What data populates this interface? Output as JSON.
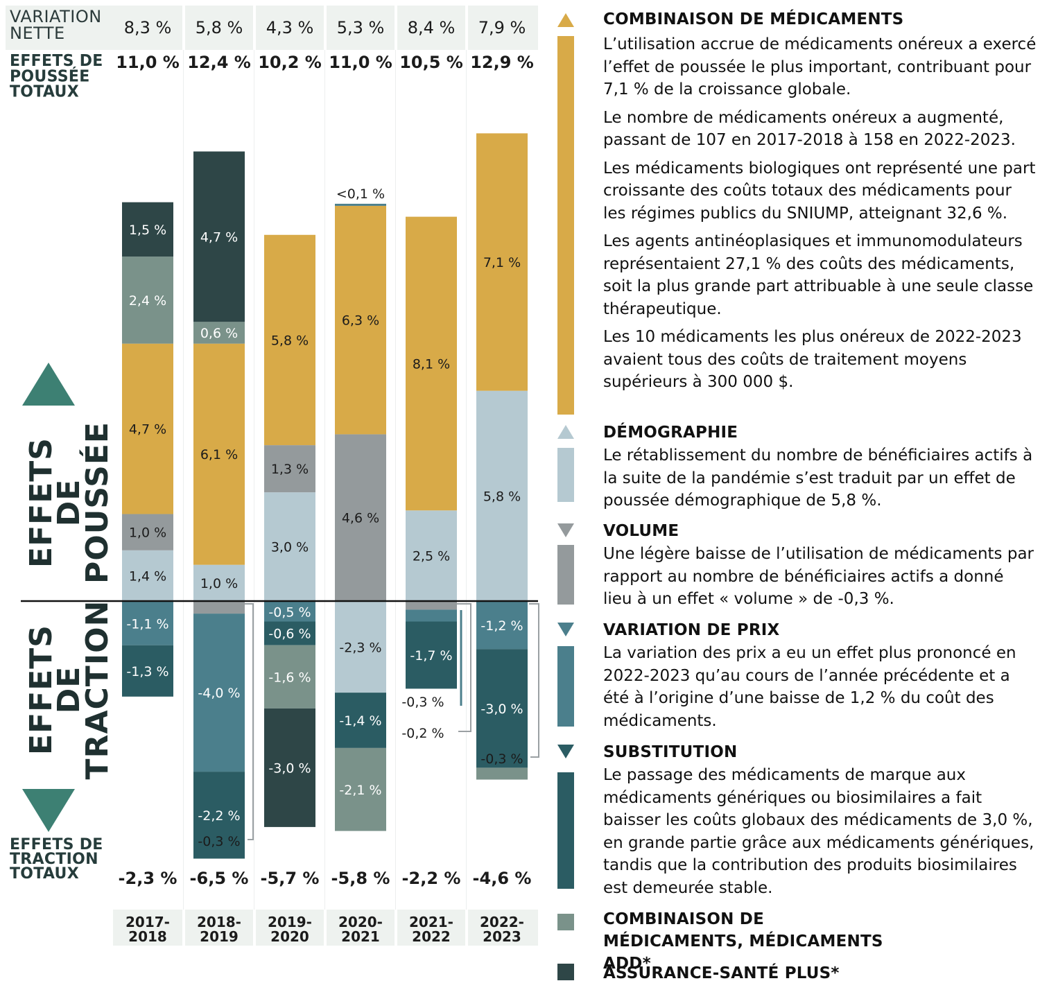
{
  "header": {
    "net_variation_label": "VARIATION NETTE",
    "push_total_label": "EFFETS DE POUSSÉE TOTAUX",
    "pull_total_label": "EFFETS DE TRACTION TOTAUX",
    "push_side_label": "EFFETS DE POUSSÉE",
    "pull_side_label": "EFFETS DE TRACTION"
  },
  "years": [
    "2017-2018",
    "2018-2019",
    "2019-2020",
    "2020-2021",
    "2021-2022",
    "2022-2023"
  ],
  "net_variation": [
    "8,3 %",
    "5,8 %",
    "4,3 %",
    "5,3 %",
    "8,4 %",
    "7,9 %"
  ],
  "push_totals": [
    "11,0 %",
    "12,4 %",
    "10,2 %",
    "11,0 %",
    "10,5 %",
    "12,9 %"
  ],
  "pull_totals": [
    "-2,3 %",
    "-6,5 %",
    "-5,7 %",
    "-5,8 %",
    "-2,2 %",
    "-4,6 %"
  ],
  "colors": {
    "drug_mix": "#d8aa48",
    "demography": "#b5c9d1",
    "volume": "#949a9c",
    "price": "#4b7f8c",
    "substitution": "#2b5c63",
    "add": "#7a928a",
    "asp": "#2e4647",
    "header_bg": "#eef2ef",
    "triangle_main": "#3d8073"
  },
  "chart_data": {
    "type": "bar",
    "stacked": true,
    "categories": [
      "2017-2018",
      "2018-2019",
      "2019-2020",
      "2020-2021",
      "2021-2022",
      "2022-2023"
    ],
    "series": [
      {
        "name": "COMBINAISON DE MÉDICAMENTS",
        "key": "drug_mix",
        "values": [
          4.7,
          6.1,
          5.8,
          6.3,
          8.1,
          7.1
        ],
        "labels": [
          "4,7 %",
          "6,1 %",
          "5,8 %",
          "6,3 %",
          "8,1 %",
          "7,1 %"
        ]
      },
      {
        "name": "DÉMOGRAPHIE",
        "key": "demography",
        "values": [
          1.4,
          1.0,
          3.0,
          -2.3,
          2.5,
          5.8
        ],
        "labels": [
          "1,4 %",
          "1,0 %",
          "3,0 %",
          "-2,3 %",
          "2,5 %",
          "5,8 %"
        ]
      },
      {
        "name": "VOLUME",
        "key": "volume",
        "values": [
          1.0,
          -0.3,
          1.3,
          4.6,
          -0.2,
          null
        ],
        "labels": [
          "1,0 %",
          "",
          "1,3 %",
          "4,6 %",
          "-0,2 %",
          ""
        ]
      },
      {
        "name": "VARIATION DE PRIX",
        "key": "price",
        "values": [
          -1.1,
          -4.0,
          -0.5,
          0.05,
          -0.3,
          -1.2
        ],
        "labels": [
          "-1,1 %",
          "-4,0 %",
          "-0,5 %",
          "<0,1 %",
          "-0,3 %",
          "-1,2 %"
        ]
      },
      {
        "name": "SUBSTITUTION",
        "key": "substitution",
        "values": [
          -1.3,
          -2.2,
          -0.6,
          -1.4,
          -1.7,
          -3.0
        ],
        "labels": [
          "-1,3 %",
          "-2,2 %",
          "-0,6 %",
          "-1,4 %",
          "-1,7 %",
          "-3,0 %"
        ]
      },
      {
        "name": "COMBINAISON DE MÉDICAMENTS, MÉDICAMENTS ADD*",
        "key": "add",
        "values": [
          2.4,
          0.6,
          -1.6,
          -2.1,
          null,
          -0.3
        ],
        "labels": [
          "2,4 %",
          "0,6 %",
          "-1,6 %",
          "-2,1 %",
          "",
          "-0,3 %"
        ]
      },
      {
        "name": "ASSURANCE-SANTÉ PLUS*",
        "key": "asp",
        "values": [
          1.5,
          4.7,
          -3.0,
          null,
          null,
          null
        ],
        "labels": [
          "1,5 %",
          "4,7 %",
          "-3,0 %",
          "",
          "",
          ""
        ]
      }
    ],
    "stacks": {
      "positive": [
        [
          [
            "demography",
            "1,4 %",
            1.4
          ],
          [
            "volume",
            "1,0 %",
            1.0
          ],
          [
            "drug_mix",
            "4,7 %",
            4.7
          ],
          [
            "add",
            "2,4 %",
            2.4
          ],
          [
            "asp",
            "1,5 %",
            1.5
          ]
        ],
        [
          [
            "demography",
            "1,0 %",
            1.0
          ],
          [
            "drug_mix",
            "6,1 %",
            6.1
          ],
          [
            "add",
            "0,6 %",
            0.6
          ],
          [
            "asp",
            "4,7 %",
            4.7
          ]
        ],
        [
          [
            "demography",
            "3,0 %",
            3.0
          ],
          [
            "volume",
            "1,3 %",
            1.3
          ],
          [
            "drug_mix",
            "5,8 %",
            5.8
          ]
        ],
        [
          [
            "volume",
            "4,6 %",
            4.6
          ],
          [
            "drug_mix",
            "6,3 %",
            6.3
          ],
          [
            "price",
            "<0,1 %",
            0.05
          ]
        ],
        [
          [
            "demography",
            "2,5 %",
            2.5
          ],
          [
            "drug_mix",
            "8,1 %",
            8.1
          ]
        ],
        [
          [
            "demography",
            "5,8 %",
            5.8
          ],
          [
            "drug_mix",
            "7,1 %",
            7.1
          ]
        ]
      ],
      "negative": [
        [
          [
            "price",
            "-1,1 %",
            1.1
          ],
          [
            "substitution",
            "-1,3 %",
            1.3
          ]
        ],
        [
          [
            "volume",
            "",
            0.3
          ],
          [
            "price",
            "-4,0 %",
            4.0
          ],
          [
            "substitution",
            "-2,2 %",
            2.2
          ]
        ],
        [
          [
            "price",
            "-0,5 %",
            0.5
          ],
          [
            "substitution",
            "-0,6 %",
            0.6
          ],
          [
            "add",
            "-1,6 %",
            1.6
          ],
          [
            "asp",
            "-3,0 %",
            3.0
          ]
        ],
        [
          [
            "demography",
            "-2,3 %",
            2.3
          ],
          [
            "substitution",
            "-1,4 %",
            1.4
          ],
          [
            "add",
            "-2,1 %",
            2.1
          ]
        ],
        [
          [
            "volume",
            "",
            0.2
          ],
          [
            "price",
            "",
            0.3
          ],
          [
            "substitution",
            "-1,7 %",
            1.7
          ]
        ],
        [
          [
            "price",
            "-1,2 %",
            1.2
          ],
          [
            "substitution",
            "-3,0 %",
            3.0
          ],
          [
            "add",
            "",
            0.3
          ]
        ]
      ]
    },
    "side_notes": [
      {
        "col": 1,
        "text": "-0,3 %"
      },
      {
        "col": 4,
        "text": "-0,3 %"
      },
      {
        "col": 4,
        "text": "-0,2 %"
      },
      {
        "col": 5,
        "text": "-0,3 %"
      }
    ]
  },
  "legend": [
    {
      "key": "drug_mix",
      "title": "COMBINAISON DE MÉDICAMENTS",
      "icon": "triangle-up",
      "paragraphs": [
        "L’utilisation accrue de médicaments onéreux a exercé l’effet de poussée le plus important, contribuant pour 7,1 % de la croissance globale.",
        "Le nombre de médicaments onéreux a augmenté, passant de 107 en 2017-2018 à 158 en 2022-2023.",
        "Les médicaments biologiques ont représenté une part croissante des coûts totaux des médicaments pour les régimes publics du SNIUMP, atteignant 32,6 %.",
        "Les agents antinéoplasiques et immunomodulateurs représentaient 27,1 % des coûts des médicaments, soit la plus grande part attribuable à une seule classe thérapeutique.",
        "Les 10 médicaments les plus onéreux de 2022-2023 avaient tous des coûts de traitement moyens supérieurs à 300 000 $."
      ]
    },
    {
      "key": "demography",
      "title": "DÉMOGRAPHIE",
      "icon": "triangle-up",
      "paragraphs": [
        "Le rétablissement du nombre de bénéficiaires actifs à la suite de la pandémie s’est traduit par un effet de poussée démographique de 5,8 %."
      ]
    },
    {
      "key": "volume",
      "title": "VOLUME",
      "icon": "triangle-down",
      "paragraphs": [
        "Une légère baisse de l’utilisation de médicaments par rapport au nombre de bénéficiaires actifs a donné lieu à un effet « volume » de -0,3 %."
      ]
    },
    {
      "key": "price",
      "title": "VARIATION DE PRIX",
      "icon": "triangle-down",
      "paragraphs": [
        "La variation des prix a eu un effet plus prononcé en 2022-2023 qu’au cours de l’année précédente et a été à l’origine d’une baisse de 1,2 % du coût des médicaments."
      ]
    },
    {
      "key": "substitution",
      "title": "SUBSTITUTION",
      "icon": "triangle-down",
      "paragraphs": [
        "Le passage des médicaments de marque aux médicaments génériques ou biosimilaires a fait baisser les coûts globaux des médicaments de 3,0 %, en grande partie grâce aux médicaments génériques, tandis que la contribution des produits biosimilaires est demeurée stable."
      ]
    },
    {
      "key": "add",
      "title": "COMBINAISON DE MÉDICAMENTS, MÉDICAMENTS ADD*",
      "icon": "square",
      "paragraphs": []
    },
    {
      "key": "asp",
      "title": "ASSURANCE-SANTÉ PLUS*",
      "icon": "square",
      "paragraphs": []
    }
  ]
}
